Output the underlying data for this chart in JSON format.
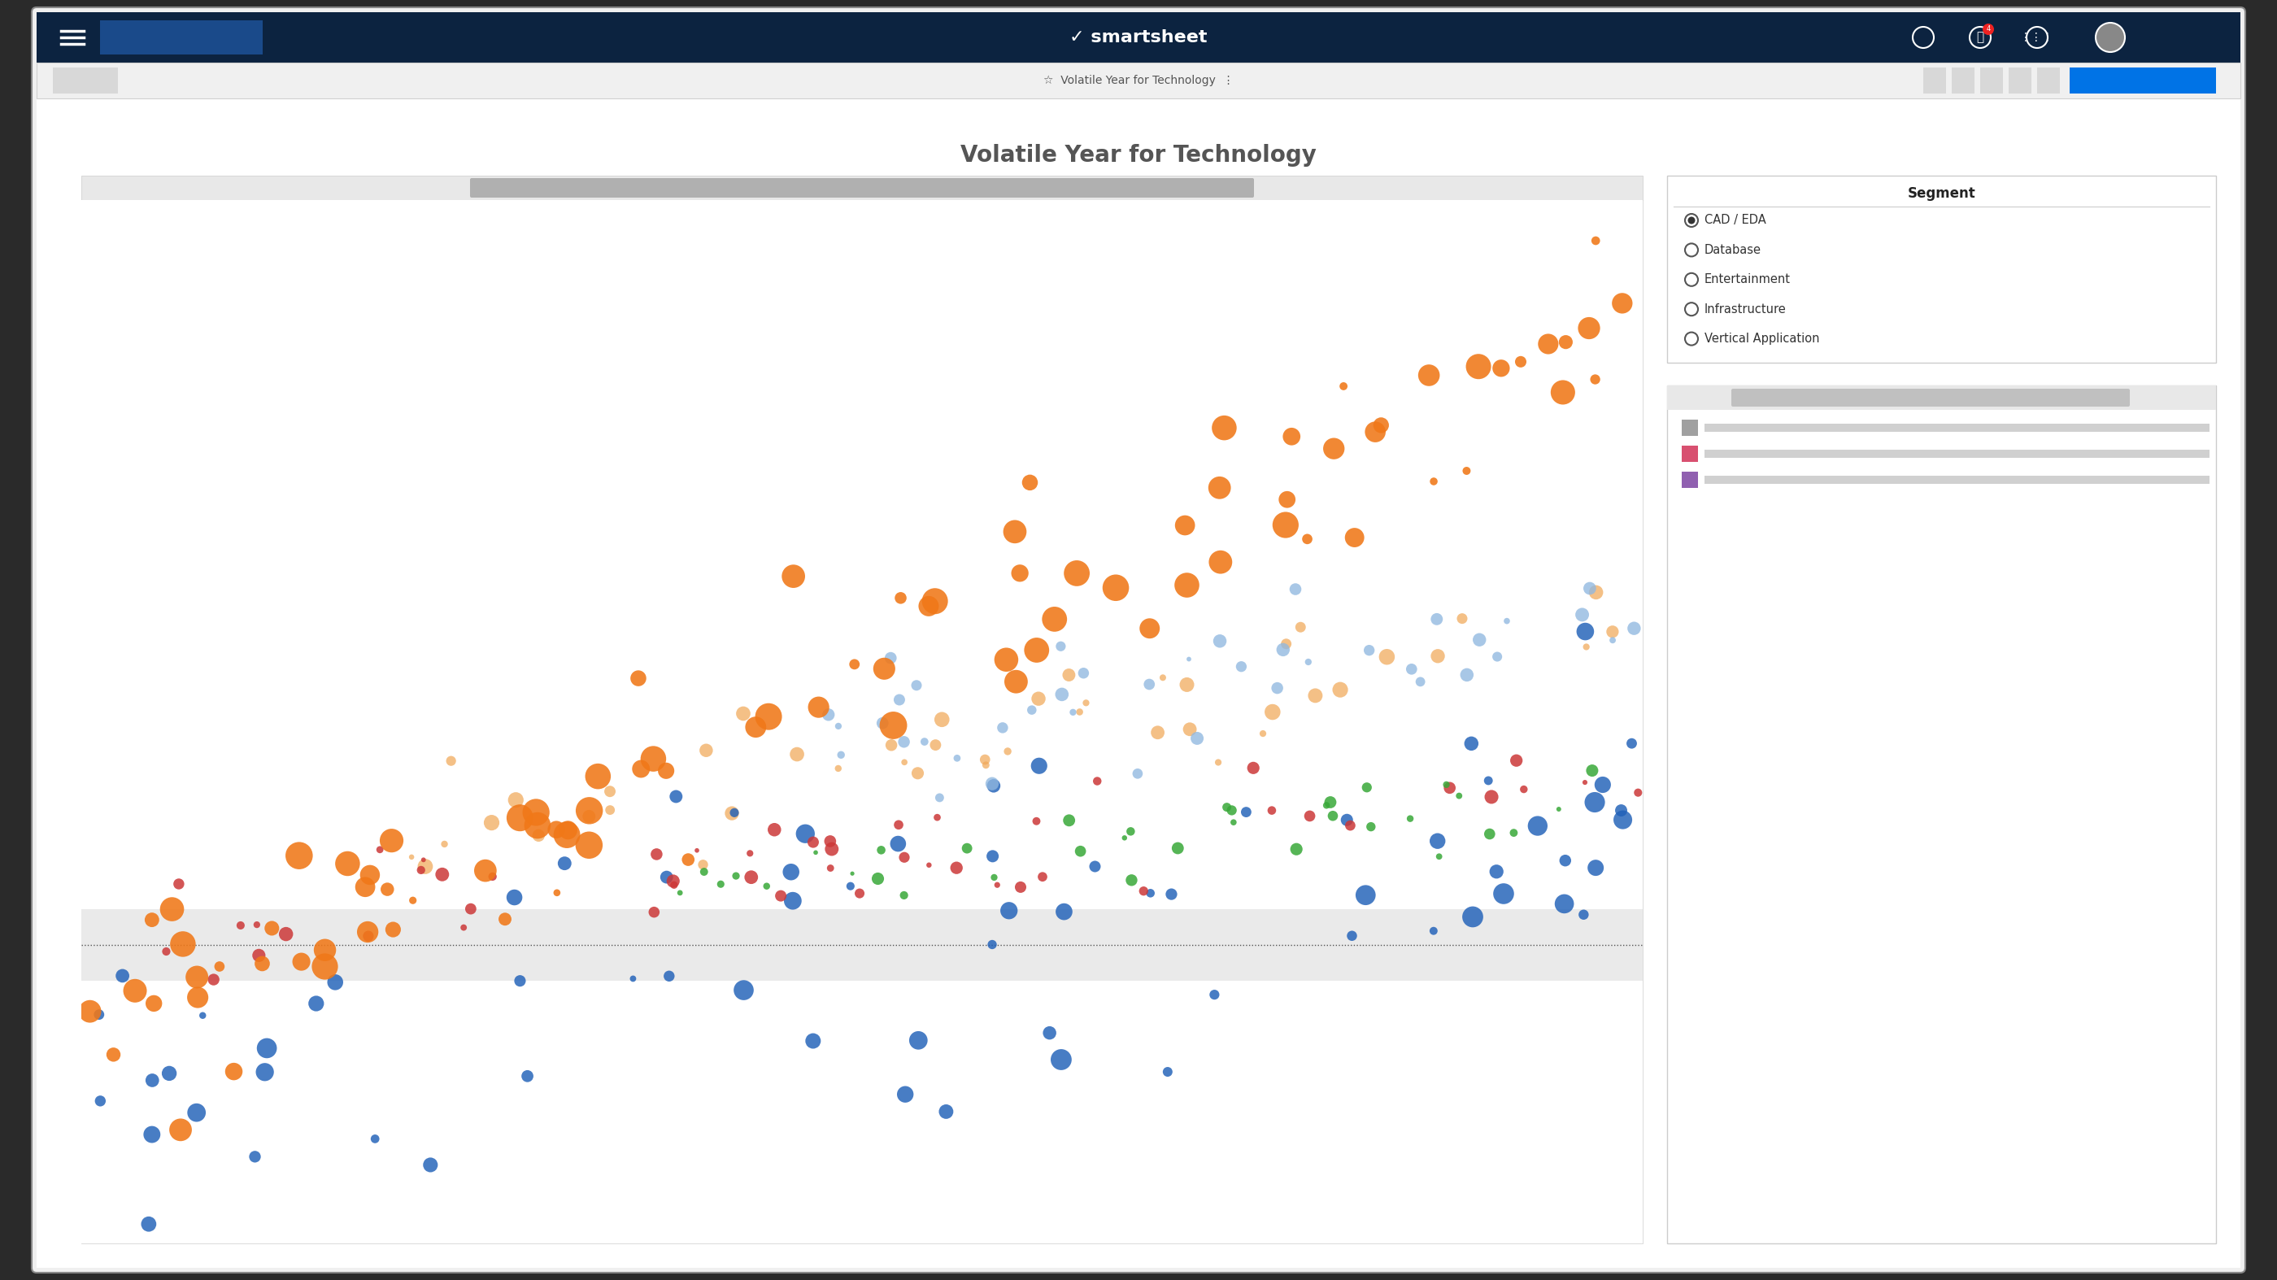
{
  "title": "Volatile Year for Technology",
  "title_color": "#555555",
  "title_fontsize": 20,
  "outer_bg": "#2a2a2a",
  "browser_bg": "#f0f0f0",
  "main_bg": "#ffffff",
  "nav_color": "#0c2340",
  "toolbar_color": "#f0f0f0",
  "segment_title": "Segment",
  "segment_items": [
    "CAD / EDA",
    "Database",
    "Entertainment",
    "Infrastructure",
    "Vertical Application"
  ],
  "segment_selected": 0,
  "colors": {
    "orange": "#f07818",
    "blue": "#2060b8",
    "red": "#cc3838",
    "green": "#38a838",
    "light_blue": "#90b8e0",
    "light_orange": "#f0a858"
  },
  "grid_color": "#e0e0e0",
  "smartsheet_blue": "#0073e6",
  "nav_btn_blue": "#1a4a8a"
}
